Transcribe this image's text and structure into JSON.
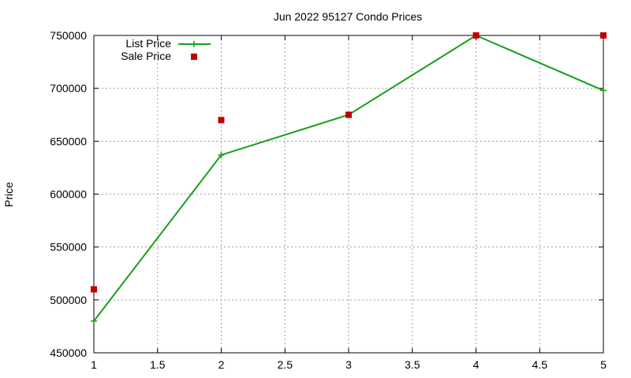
{
  "chart_data": {
    "type": "line",
    "title": "Jun 2022 95127 Condo Prices",
    "xlabel": "",
    "ylabel": "Price",
    "xlim": [
      1,
      5
    ],
    "ylim": [
      450000,
      750000
    ],
    "xticks": [
      1,
      1.5,
      2,
      2.5,
      3,
      3.5,
      4,
      4.5,
      5
    ],
    "xtick_labels": [
      "1",
      "1.5",
      "2",
      "2.5",
      "3",
      "3.5",
      "4",
      "4.5",
      "5"
    ],
    "yticks": [
      450000,
      500000,
      550000,
      600000,
      650000,
      700000,
      750000
    ],
    "ytick_labels": [
      "450000",
      "500000",
      "550000",
      "600000",
      "650000",
      "700000",
      "750000"
    ],
    "grid": true,
    "legend_position": "top-left",
    "series": [
      {
        "name": "List Price",
        "type": "line",
        "marker": "plus",
        "color": "#1a9e1a",
        "x": [
          1,
          2,
          3,
          4,
          5
        ],
        "y": [
          480000,
          637000,
          675000,
          750000,
          698000
        ]
      },
      {
        "name": "Sale Price",
        "type": "scatter",
        "marker": "square",
        "color": "#c00000",
        "x": [
          1,
          2,
          3,
          4,
          5
        ],
        "y": [
          510000,
          670000,
          675000,
          750000,
          750000
        ]
      }
    ]
  }
}
